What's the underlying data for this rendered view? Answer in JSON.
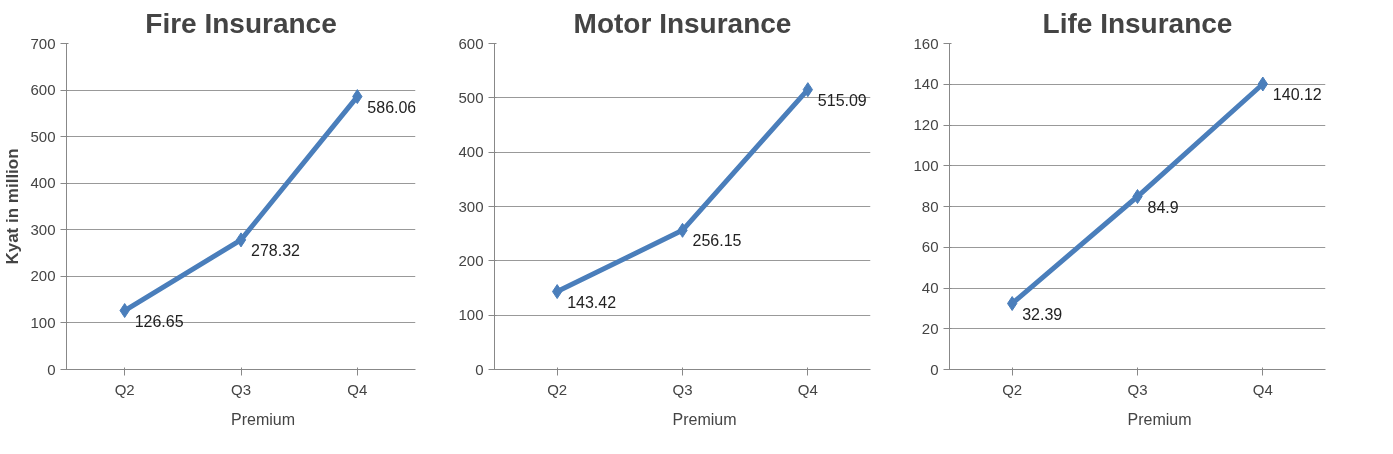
{
  "chart_data": [
    {
      "type": "line",
      "title": "Fire Insurance",
      "ylabel": "Kyat in million",
      "categories": [
        "Q2",
        "Q3",
        "Q4"
      ],
      "series": [
        {
          "name": "Premium",
          "color": "#4a7ebb",
          "values": [
            126.65,
            278.32,
            586.06
          ]
        }
      ],
      "ylim": [
        0,
        700
      ],
      "yticks": [
        0,
        100,
        200,
        300,
        400,
        500,
        600,
        700
      ],
      "grid": "y",
      "legend": "bottom",
      "marker": "diamond",
      "line_style": "solid",
      "data_labels": true
    },
    {
      "type": "line",
      "title": "Motor Insurance",
      "categories": [
        "Q2",
        "Q3",
        "Q4"
      ],
      "series": [
        {
          "name": "Premium",
          "color": "#4a7ebb",
          "values": [
            143.42,
            256.15,
            515.09
          ]
        }
      ],
      "ylim": [
        0,
        600
      ],
      "yticks": [
        0,
        100,
        200,
        300,
        400,
        500,
        600
      ],
      "grid": "y",
      "legend": "bottom",
      "marker": "diamond",
      "line_style": "solid",
      "data_labels": true
    },
    {
      "type": "line",
      "title": "Life Insurance",
      "categories": [
        "Q2",
        "Q3",
        "Q4"
      ],
      "series": [
        {
          "name": "Premium",
          "color": "#4a7ebb",
          "values": [
            32.39,
            84.9,
            140.12
          ]
        }
      ],
      "ylim": [
        0,
        160
      ],
      "yticks": [
        0,
        20,
        40,
        60,
        80,
        100,
        120,
        140,
        160
      ],
      "grid": "y",
      "legend": "bottom",
      "marker": "diamond",
      "line_style": "solid",
      "data_labels": true
    }
  ]
}
